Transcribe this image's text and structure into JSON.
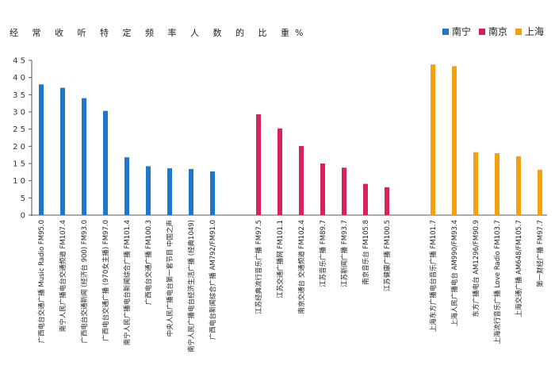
{
  "chart_data": {
    "type": "bar",
    "title": "经 常 收 听 特 定 频 率 人 数 的 比 重%",
    "legend_position": "top-right",
    "ylim": [
      0,
      45
    ],
    "yticks": [
      "0",
      "5",
      "1 0",
      "1 5",
      "2 0",
      "2 5",
      "3 0",
      "3 5",
      "4 0",
      "4 5"
    ],
    "ytick_values": [
      0,
      5,
      10,
      15,
      20,
      25,
      30,
      35,
      40,
      45
    ],
    "grid": false,
    "series": [
      {
        "name": "南宁",
        "color": "#1f77c9",
        "categories": [
          "广西电台交通广播 Music Radio FM95.0",
          "南宁人民广播电台交通频道 FM107.4",
          "广西电台交通新闻 (经济台 900) FM93.0",
          "广西电台交通广播 (970女主播) FM97.0",
          "南宁人民广播电台新闻综合广播 FM101.4",
          "广西电台交通广播 FM100.3",
          "中央人民广播电台第一套节目 中国之声",
          "南宁人民广播电台经济生活广播 (经典1049)",
          "广西电台新闻综合广播 AM792/FM91.0"
        ],
        "values": [
          38,
          37,
          34,
          30.3,
          16.8,
          14.2,
          13.6,
          13.4,
          12.7
        ]
      },
      {
        "name": "南京",
        "color": "#d6245b",
        "categories": [
          "江苏经典流行音乐广播 FM97.5",
          "江苏交通广播网 FM101.1",
          "南京交通台 交通频道 FM102.4",
          "江苏音乐广播 FM89.7",
          "江苏新闻广播 FM93.7",
          "南京音乐台 FM105.8",
          "江苏健康广播 FM100.5"
        ],
        "values": [
          29.3,
          25.2,
          20.1,
          15,
          13.8,
          9.1,
          8.1
        ]
      },
      {
        "name": "上海",
        "color": "#f5a00f",
        "categories": [
          "上海东方广播电台音乐广播 FM101.7",
          "上海人民广播电台 AM990/FM93.4",
          "东方广播电台 AM1296/FM90.9",
          "上海流行音乐广播 Love Radio FM103.7",
          "上海交通广播 AM648/FM105.7",
          "第一财经广播 FM97.7"
        ],
        "values": [
          43.8,
          43.3,
          18.3,
          18,
          17.1,
          13.2
        ]
      }
    ]
  }
}
